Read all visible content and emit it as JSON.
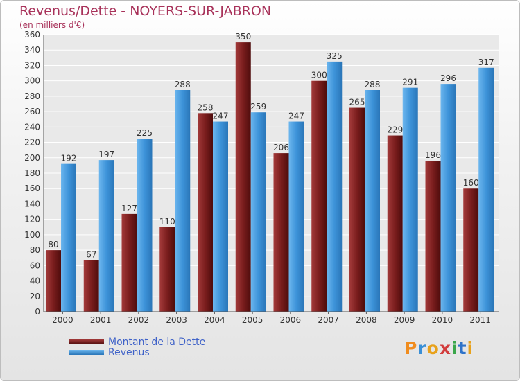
{
  "chart_data": {
    "type": "bar",
    "title": "Revenus/Dette - NOYERS-SUR-JABRON",
    "subtitle": "(en milliers d'€)",
    "categories": [
      "2000",
      "2001",
      "2002",
      "2003",
      "2004",
      "2005",
      "2006",
      "2007",
      "2008",
      "2009",
      "2010",
      "2011"
    ],
    "series": [
      {
        "name": "Montant de la Dette",
        "color": "#7a1d1d",
        "values": [
          80,
          67,
          127,
          110,
          258,
          350,
          206,
          300,
          265,
          229,
          196,
          160
        ]
      },
      {
        "name": "Revenus",
        "color": "#3d93d9",
        "values": [
          192,
          197,
          225,
          288,
          247,
          259,
          247,
          325,
          288,
          291,
          296,
          317
        ]
      }
    ],
    "ylim": [
      0,
      360
    ],
    "ytick_step": 20,
    "grid": true,
    "legend": "bottom-left"
  },
  "logo": {
    "text": "Proxiti",
    "colors": [
      "#f08c1e",
      "#3a8fd6",
      "#e8a21c",
      "#d23c3c",
      "#3aa64a",
      "#2f73c9",
      "#e8a21c"
    ]
  }
}
